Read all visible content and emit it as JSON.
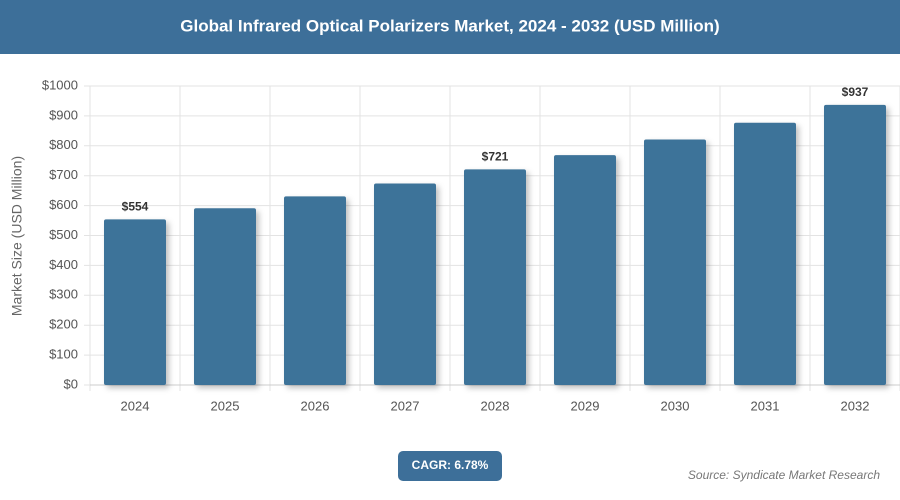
{
  "chart_data": {
    "type": "bar",
    "title": "Global Infrared Optical Polarizers Market, 2024 - 2032 (USD Million)",
    "y_label": "Market Size (USD Million)",
    "categories": [
      "2024",
      "2025",
      "2026",
      "2027",
      "2028",
      "2029",
      "2030",
      "2031",
      "2032"
    ],
    "values": [
      554,
      591,
      631,
      674,
      721,
      769,
      821,
      877,
      937
    ],
    "value_labels": [
      "$554",
      null,
      null,
      null,
      "$721",
      null,
      null,
      null,
      "$937"
    ],
    "color": "#3d7399",
    "ylim": [
      0,
      1000
    ],
    "yticks": [
      {
        "value": 0,
        "label": "$0"
      },
      {
        "value": 100,
        "label": "$100"
      },
      {
        "value": 200,
        "label": "$200"
      },
      {
        "value": 300,
        "label": "$300"
      },
      {
        "value": 400,
        "label": "$400"
      },
      {
        "value": 500,
        "label": "$500"
      },
      {
        "value": 600,
        "label": "$600"
      },
      {
        "value": 700,
        "label": "$700"
      },
      {
        "value": 800,
        "label": "$800"
      },
      {
        "value": 900,
        "label": "$900"
      },
      {
        "value": 1000,
        "label": "$1000"
      }
    ],
    "grid": true,
    "cagr": "CAGR: 6.78%",
    "source": "Source: Syndicate Market Research"
  }
}
